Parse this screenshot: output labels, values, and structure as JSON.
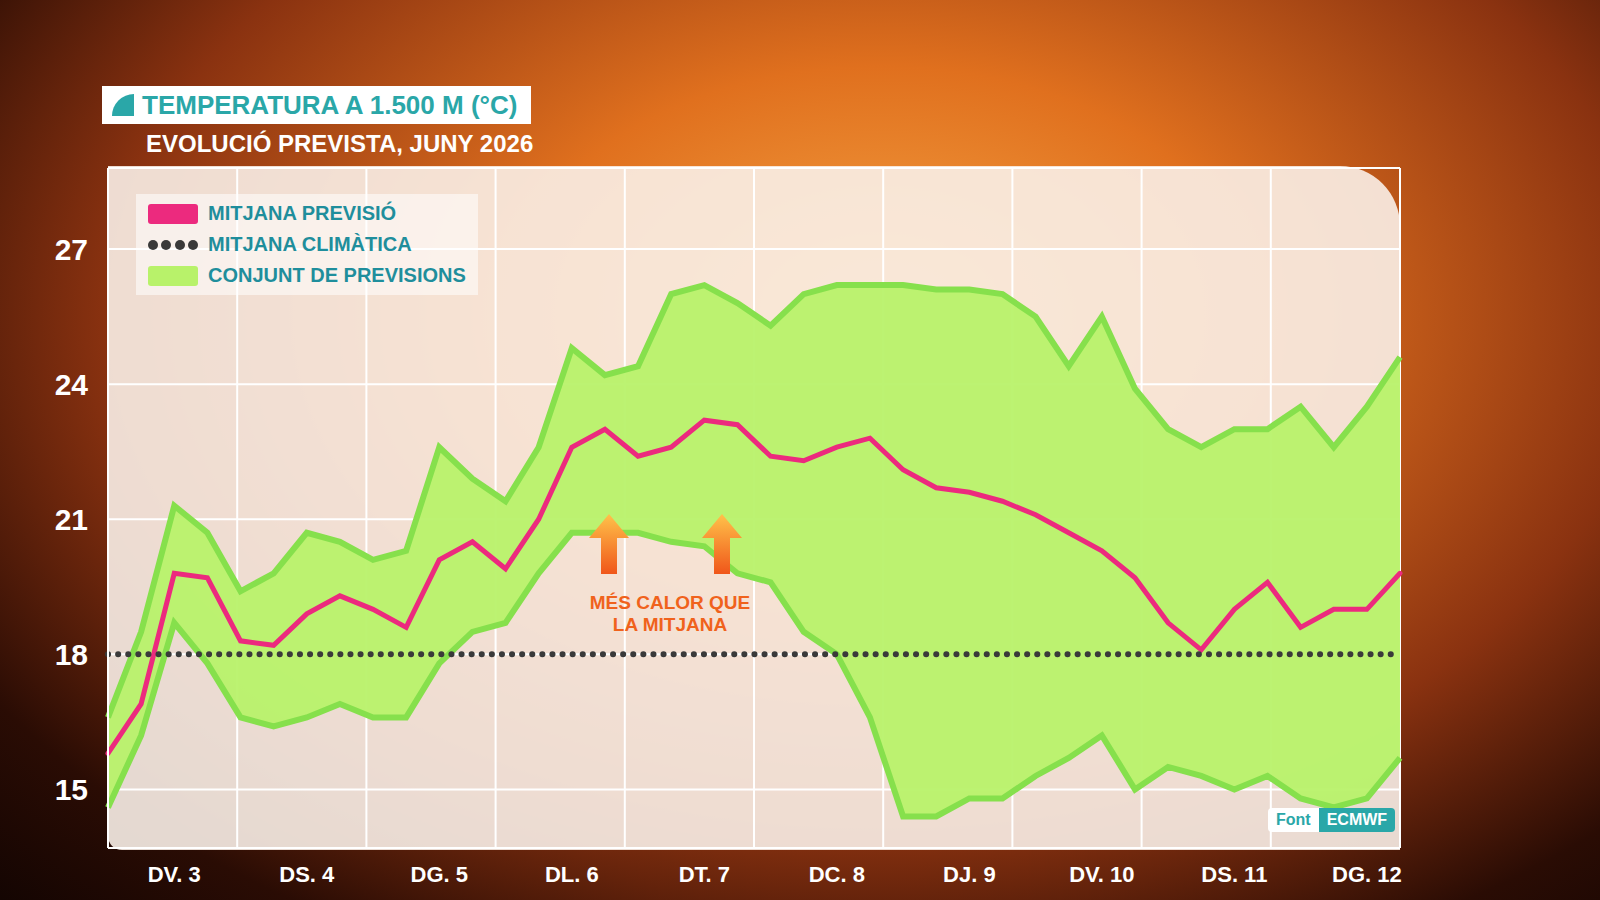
{
  "chart_data": {
    "type": "line",
    "title": "TEMPERATURA A 1.500 M (°C)",
    "subtitle": "EVOLUCIÓ PREVISTA, JUNY 2026",
    "source_label": "Font",
    "source": "ECMWF",
    "annotations": [
      {
        "text": "MÉS CALOR QUE LA MITJANA"
      }
    ],
    "categories": [
      null,
      null,
      "DV. 3",
      null,
      null,
      null,
      "DS. 4",
      null,
      null,
      null,
      "DG. 5",
      null,
      null,
      null,
      "DL. 6",
      null,
      null,
      null,
      "DT. 7",
      null,
      null,
      null,
      "DC. 8",
      null,
      null,
      null,
      "DJ. 9",
      null,
      null,
      null,
      "DV. 10",
      null,
      null,
      null,
      "DS. 11",
      null,
      null,
      null,
      "DG. 12",
      null
    ],
    "series": [
      {
        "name": "MITJANA PREVISIÓ",
        "type": "line",
        "color": "#ec2a7e",
        "line_style": "solid",
        "values": [
          15.8,
          16.9,
          19.8,
          19.7,
          18.3,
          18.2,
          18.9,
          19.3,
          19.0,
          18.6,
          20.1,
          20.5,
          19.9,
          21.0,
          22.6,
          23.0,
          22.4,
          22.6,
          23.2,
          23.1,
          22.4,
          22.3,
          22.6,
          22.8,
          22.1,
          21.7,
          21.6,
          21.4,
          21.1,
          20.7,
          20.3,
          19.7,
          18.7,
          18.1,
          19.0,
          19.6,
          18.6,
          19.0,
          19.0,
          19.8
        ]
      },
      {
        "name": "MITJANA CLIMÀTICA",
        "type": "line",
        "color": "#3a3a3a",
        "line_style": "dotted",
        "values": [
          18,
          18,
          18,
          18,
          18,
          18,
          18,
          18,
          18,
          18,
          18,
          18,
          18,
          18,
          18,
          18,
          18,
          18,
          18,
          18,
          18,
          18,
          18,
          18,
          18,
          18,
          18,
          18,
          18,
          18,
          18,
          18,
          18,
          18,
          18,
          18,
          18,
          18,
          18,
          18
        ]
      },
      {
        "name": "CONJUNT DE PREVISIONS",
        "type": "area",
        "color": "#b8f26a",
        "values": [
          [
            14.6,
            16.6
          ],
          [
            16.2,
            18.5
          ],
          [
            18.7,
            21.3
          ],
          [
            17.8,
            20.7
          ],
          [
            16.6,
            19.4
          ],
          [
            16.4,
            19.8
          ],
          [
            16.6,
            20.7
          ],
          [
            16.9,
            20.5
          ],
          [
            16.6,
            20.1
          ],
          [
            16.6,
            20.3
          ],
          [
            17.8,
            22.6
          ],
          [
            18.5,
            21.9
          ],
          [
            18.7,
            21.4
          ],
          [
            19.8,
            22.6
          ],
          [
            20.7,
            24.8
          ],
          [
            20.7,
            24.2
          ],
          [
            20.7,
            24.4
          ],
          [
            20.5,
            26.0
          ],
          [
            20.4,
            26.2
          ],
          [
            19.8,
            25.8
          ],
          [
            19.6,
            25.3
          ],
          [
            18.5,
            26.0
          ],
          [
            18.0,
            26.2
          ],
          [
            16.6,
            26.2
          ],
          [
            14.4,
            26.2
          ],
          [
            14.4,
            26.1
          ],
          [
            14.8,
            26.1
          ],
          [
            14.8,
            26.0
          ],
          [
            15.3,
            25.5
          ],
          [
            15.7,
            24.4
          ],
          [
            16.2,
            25.5
          ],
          [
            15.0,
            23.9
          ],
          [
            15.5,
            23.0
          ],
          [
            15.3,
            22.6
          ],
          [
            15.0,
            23.0
          ],
          [
            15.3,
            23.0
          ],
          [
            14.8,
            23.5
          ],
          [
            14.6,
            22.6
          ],
          [
            14.8,
            23.5
          ],
          [
            15.7,
            24.6
          ]
        ]
      }
    ],
    "ylim": [
      13.7,
      28.8
    ],
    "yticks": [
      15,
      18,
      21,
      24,
      27
    ],
    "grid": true,
    "legend": "upper left"
  }
}
